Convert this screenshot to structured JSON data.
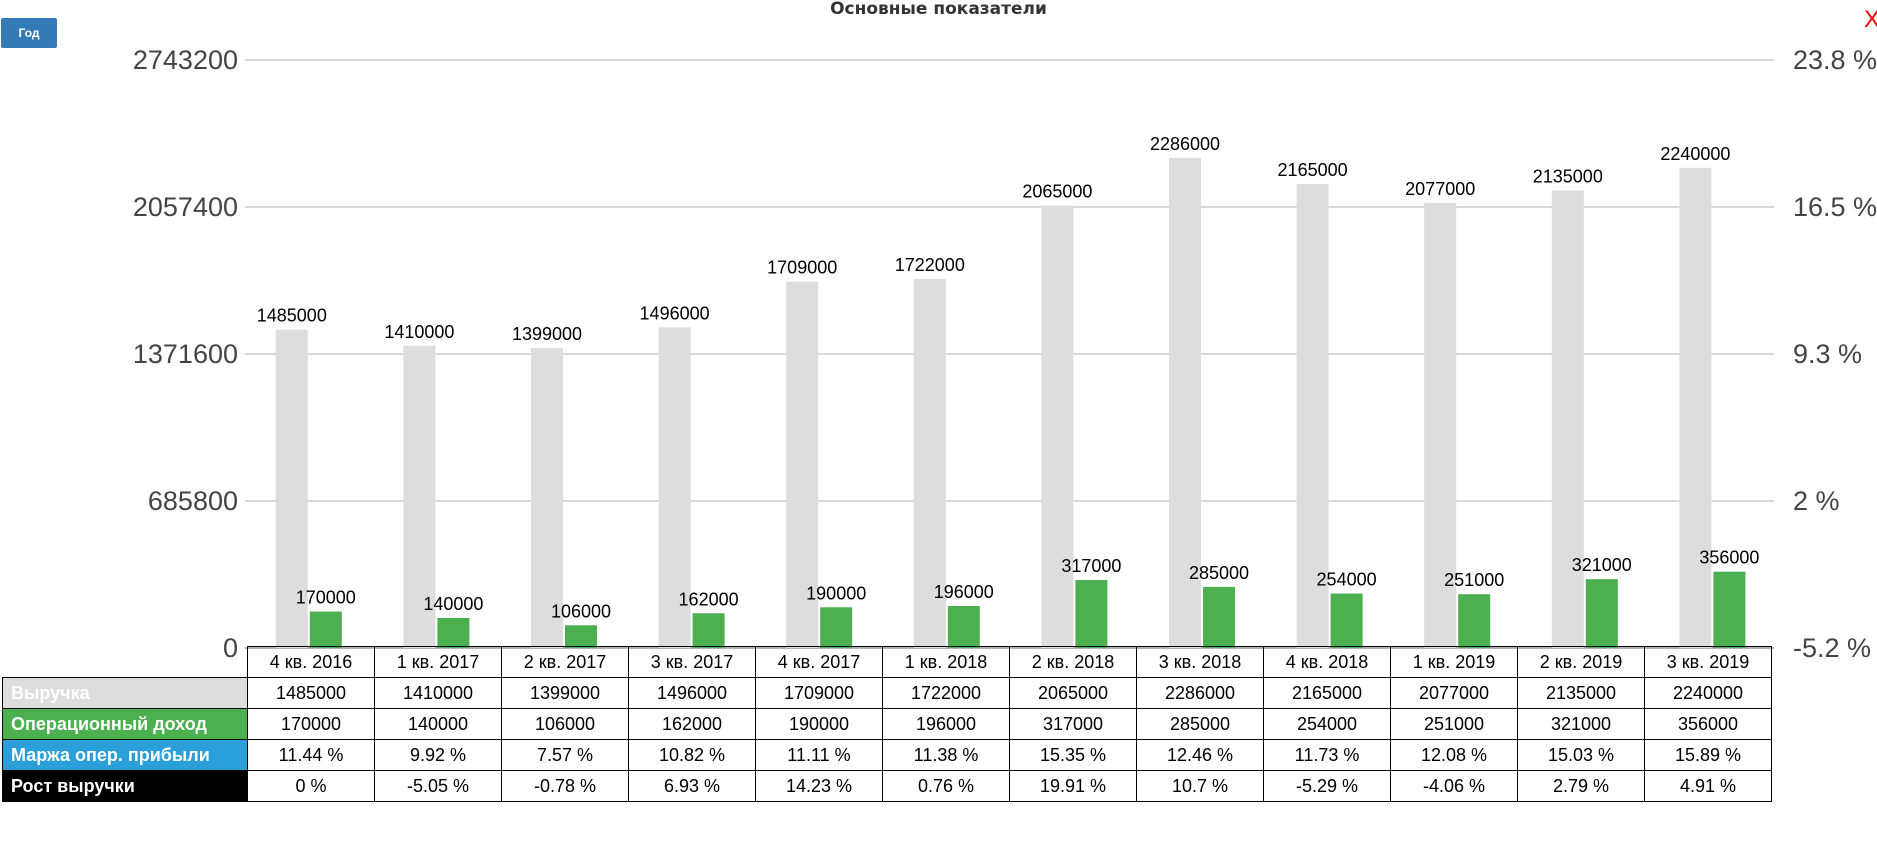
{
  "button_label": "Год",
  "close_label": "X",
  "chart_data": {
    "type": "bar",
    "title": "Основные показатели",
    "categories": [
      "4 кв. 2016",
      "1 кв. 2017",
      "2 кв. 2017",
      "3 кв. 2017",
      "4 кв. 2017",
      "1 кв. 2018",
      "2 кв. 2018",
      "3 кв. 2018",
      "4 кв. 2018",
      "1 кв. 2019",
      "2 кв. 2019",
      "3 кв. 2019"
    ],
    "ylim": [
      0,
      2743200
    ],
    "yticks": [
      "2743200",
      "2057400",
      "1371600",
      "685800",
      "0"
    ],
    "y2lim": [
      -5.2,
      23.8
    ],
    "y2ticks": [
      "23.8 %",
      "16.5 %",
      "9.3 %",
      "2 %",
      "-5.2 %"
    ],
    "grid": true,
    "series": [
      {
        "name": "Выручка",
        "color": "#dddddd",
        "values": [
          1485000,
          1410000,
          1399000,
          1496000,
          1709000,
          1722000,
          2065000,
          2286000,
          2165000,
          2077000,
          2135000,
          2240000
        ],
        "labels": [
          "1485000",
          "1410000",
          "1399000",
          "1496000",
          "1709000",
          "1722000",
          "2065000",
          "2286000",
          "2165000",
          "2077000",
          "2135000",
          "2240000"
        ]
      },
      {
        "name": "Операционный доход",
        "color": "#4caf50",
        "values": [
          170000,
          140000,
          106000,
          162000,
          190000,
          196000,
          317000,
          285000,
          254000,
          251000,
          321000,
          356000
        ],
        "labels": [
          "170000",
          "140000",
          "106000",
          "162000",
          "190000",
          "196000",
          "317000",
          "285000",
          "254000",
          "251000",
          "321000",
          "356000"
        ]
      }
    ]
  },
  "table": {
    "headers": [
      "4 кв. 2016",
      "1 кв. 2017",
      "2 кв. 2017",
      "3 кв. 2017",
      "4 кв. 2017",
      "1 кв. 2018",
      "2 кв. 2018",
      "3 кв. 2018",
      "4 кв. 2018",
      "1 кв. 2019",
      "2 кв. 2019",
      "3 кв. 2019"
    ],
    "rows": [
      {
        "label": "Выручка",
        "bg": "#dddddd",
        "fg": "#ffffff",
        "values": [
          "1485000",
          "1410000",
          "1399000",
          "1496000",
          "1709000",
          "1722000",
          "2065000",
          "2286000",
          "2165000",
          "2077000",
          "2135000",
          "2240000"
        ]
      },
      {
        "label": "Операционный доход",
        "bg": "#4caf50",
        "fg": "#ffffff",
        "values": [
          "170000",
          "140000",
          "106000",
          "162000",
          "190000",
          "196000",
          "317000",
          "285000",
          "254000",
          "251000",
          "321000",
          "356000"
        ]
      },
      {
        "label": "Маржа опер. прибыли",
        "bg": "#2b9fd9",
        "fg": "#ffffff",
        "values": [
          "11.44 %",
          "9.92 %",
          "7.57 %",
          "10.82 %",
          "11.11 %",
          "11.38 %",
          "15.35 %",
          "12.46 %",
          "11.73 %",
          "12.08 %",
          "15.03 %",
          "15.89 %"
        ]
      },
      {
        "label": "Рост выручки",
        "bg": "#000000",
        "fg": "#ffffff",
        "values": [
          "0 %",
          "-5.05 %",
          "-0.78 %",
          "6.93 %",
          "14.23 %",
          "0.76 %",
          "19.91 %",
          "10.7 %",
          "-5.29 %",
          "-4.06 %",
          "2.79 %",
          "4.91 %"
        ]
      }
    ]
  }
}
